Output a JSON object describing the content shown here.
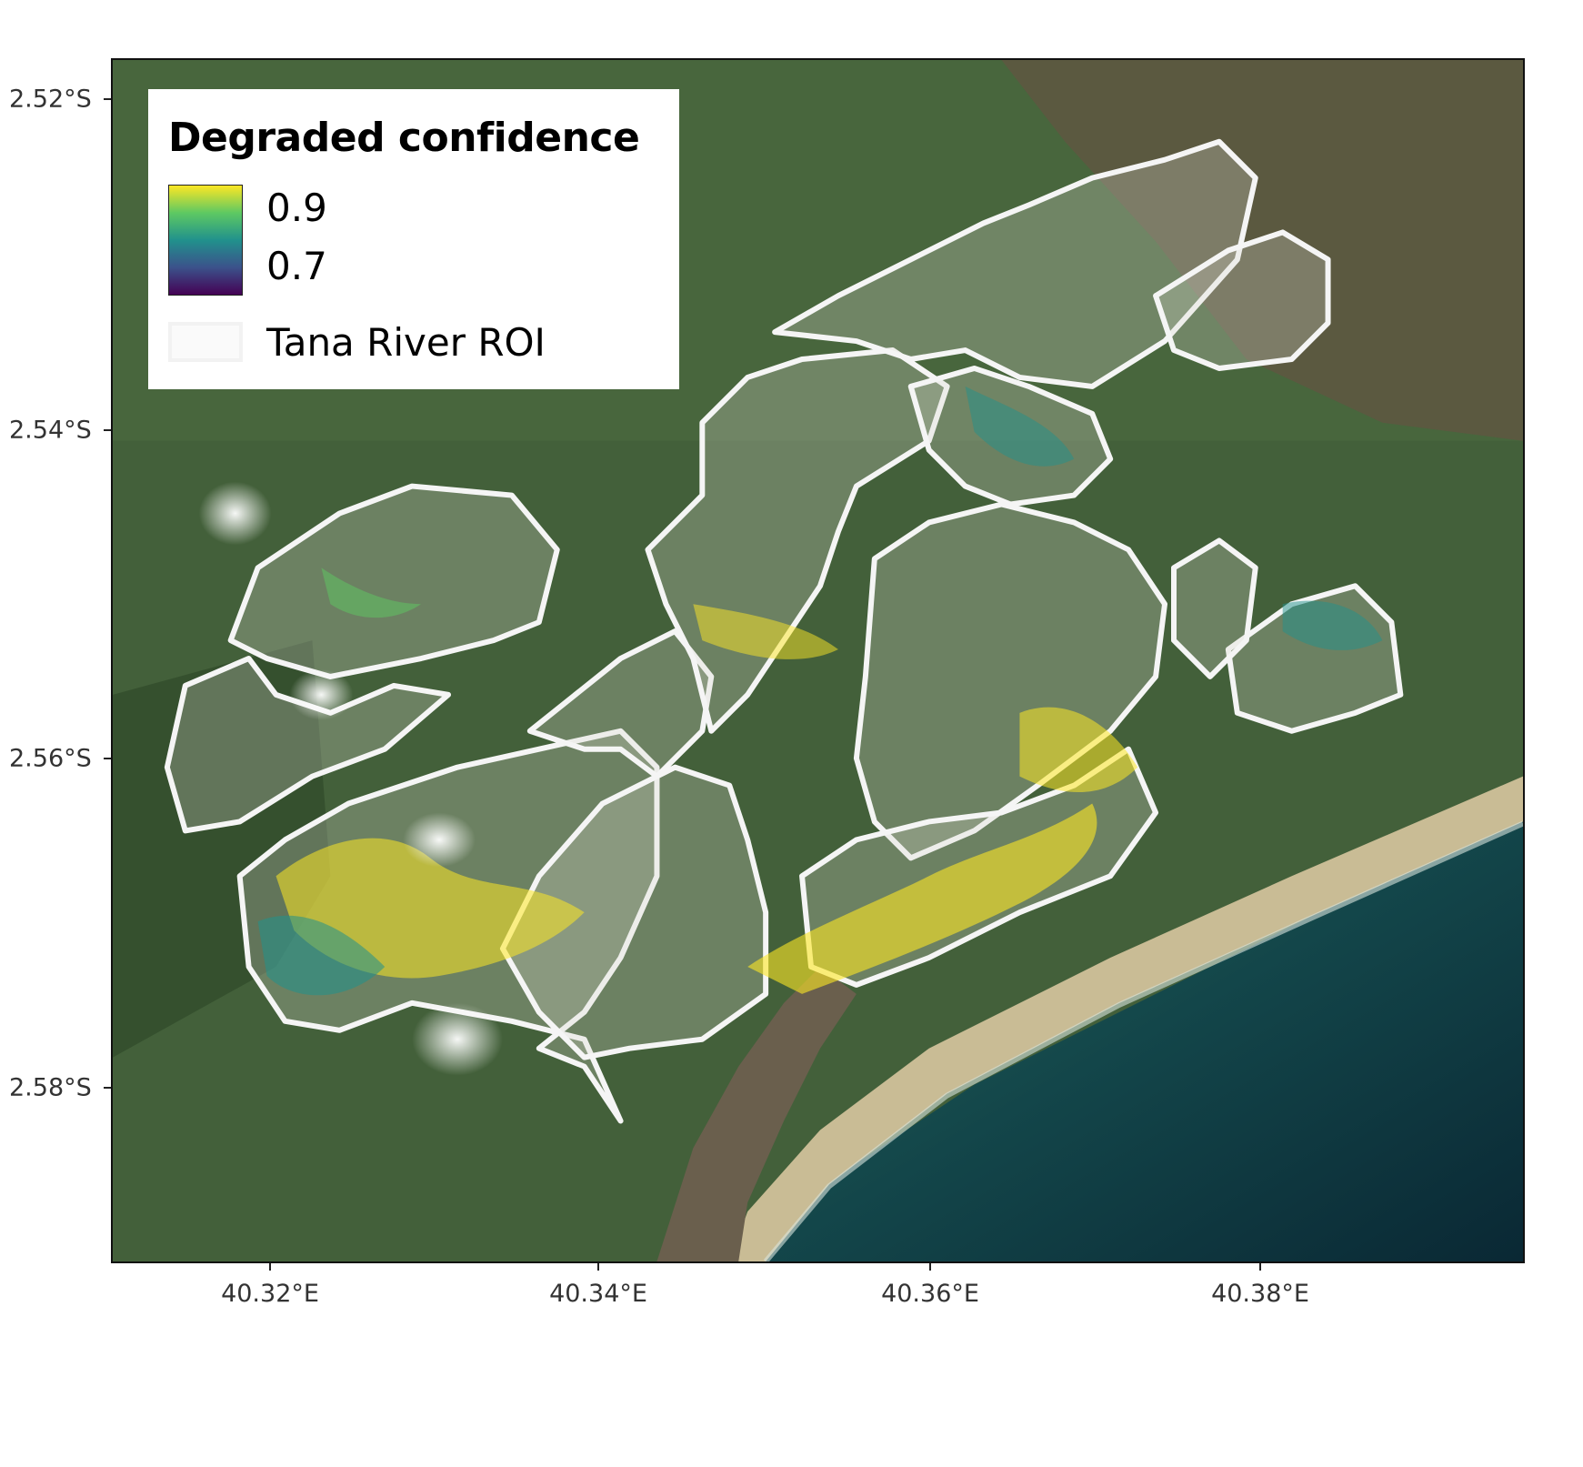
{
  "map": {
    "latitude_labels": [
      "2.52°S",
      "2.54°S",
      "2.56°S",
      "2.58°S"
    ],
    "longitude_labels": [
      "40.32°E",
      "40.34°E",
      "40.36°E",
      "40.38°E"
    ],
    "basemap": "satellite-imagery",
    "colors": {
      "land": "#3f5a34",
      "delta_mud": "#6f6a5c",
      "sea": "#0f3f44",
      "beach": "#c8bb94",
      "river": "#3b3a30",
      "roi_outline": "#f5f5f5"
    }
  },
  "legend": {
    "title": "Degraded confidence",
    "colorbar_max_label": "0.9",
    "colorbar_min_label": "0.7",
    "colormap": [
      "#440154",
      "#3b528b",
      "#21918c",
      "#5ec962",
      "#fde725"
    ],
    "roi_label": "Tana River ROI"
  }
}
